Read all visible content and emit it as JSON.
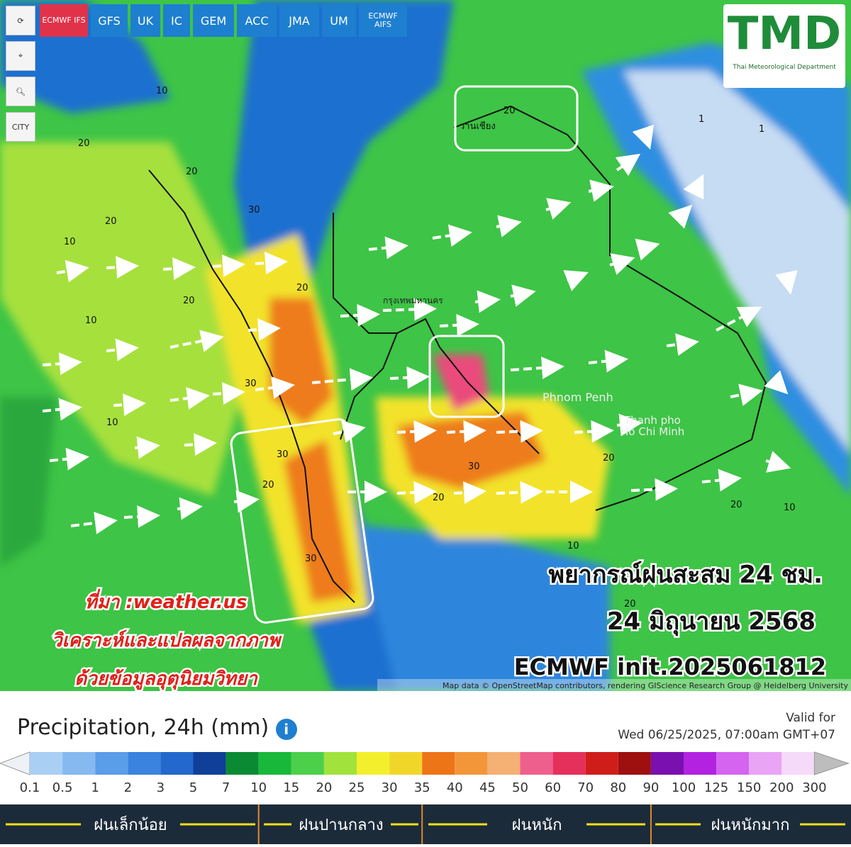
{
  "toolbar": {
    "models": [
      "ECMWF IFS",
      "GFS",
      "UK",
      "IC",
      "GEM",
      "ACC",
      "JMA",
      "UM",
      "ECMWF AIFS"
    ],
    "city": "CITY"
  },
  "logo": {
    "title": "TMD",
    "subtitle": "Thai Meteorological Department"
  },
  "map": {
    "places": [
      "กรุงเทพมหานคร",
      "Phnom Penh",
      "Thanh pho",
      "Ho Chi Minh",
      "วานเชียง"
    ],
    "contour_labels": [
      "10",
      "20",
      "20",
      "30",
      "20",
      "10",
      "20",
      "30",
      "10",
      "20",
      "30",
      "10",
      "20",
      "30",
      "20",
      "10",
      "20",
      "30",
      "20",
      "10",
      "1",
      "1",
      "20",
      "20"
    ],
    "attribution": "Map data © OpenStreetMap contributors, rendering GIScience Research Group @ Heidelberg University"
  },
  "overlay": {
    "forecast_title": "พยากรณ์ฝนสะสม 24 ชม.",
    "date": "24 มิถุนายน 2568",
    "init": "ECMWF  init.2025061812",
    "source": "ที่มา :weather.us",
    "analysis": "วิเคราะห์และแปลผลจากภาพ",
    "analysis2": "ด้วยข้อมูลอุตุนิยมวิทยา"
  },
  "legend": {
    "title": "Precipitation, 24h (mm)",
    "valid_label": "Valid for",
    "valid_time": "Wed 06/25/2025, 07:00am GMT+07",
    "ticks": [
      "0.1",
      "0.5",
      "1",
      "2",
      "3",
      "5",
      "7",
      "10",
      "15",
      "20",
      "25",
      "30",
      "35",
      "40",
      "45",
      "50",
      "60",
      "70",
      "80",
      "90",
      "100",
      "125",
      "150",
      "200",
      "300"
    ],
    "colors": [
      "#a9cff5",
      "#86b9f0",
      "#5a9de8",
      "#3a83df",
      "#2368cc",
      "#0f3f98",
      "#0b8a34",
      "#18b83a",
      "#4cd04a",
      "#a2e23c",
      "#f3ef2c",
      "#f1d62a",
      "#ee7418",
      "#f3963a",
      "#f5b074",
      "#ef5f8e",
      "#e6305c",
      "#cf1e1a",
      "#9e1010",
      "#7a10b0",
      "#b222e0",
      "#d564f0",
      "#e9a4f6",
      "#f6daf9"
    ]
  },
  "categories": [
    "ฝนเล็กน้อย",
    "ฝนปานกลาง",
    "ฝนหนัก",
    "ฝนหนักมาก"
  ]
}
